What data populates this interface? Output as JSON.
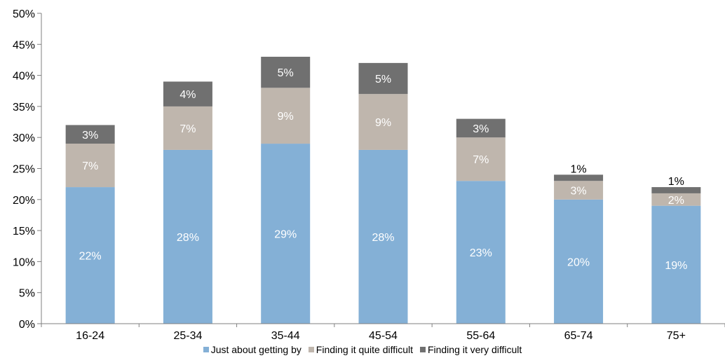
{
  "chart_data": {
    "type": "bar",
    "stacked": true,
    "categories": [
      "16-24",
      "25-34",
      "35-44",
      "45-54",
      "55-64",
      "65-74",
      "75+"
    ],
    "series": [
      {
        "name": "Just about getting by",
        "color": "#84b0d6",
        "label_color": "#ffffff",
        "values": [
          22,
          28,
          29,
          28,
          23,
          20,
          19
        ],
        "labels": [
          "22%",
          "28%",
          "29%",
          "28%",
          "23%",
          "20%",
          "19%"
        ]
      },
      {
        "name": "Finding it quite difficult",
        "color": "#bfb6ad",
        "label_color": "#ffffff",
        "values": [
          7,
          7,
          9,
          9,
          7,
          3,
          2
        ],
        "labels": [
          "7%",
          "7%",
          "9%",
          "9%",
          "7%",
          "3%",
          "2%"
        ]
      },
      {
        "name": "Finding it very difficult",
        "color": "#707070",
        "label_color": "#ffffff",
        "label_color_outside": "#000000",
        "values": [
          3,
          4,
          5,
          5,
          3,
          1,
          1
        ],
        "labels": [
          "3%",
          "4%",
          "5%",
          "5%",
          "3%",
          "1%",
          "1%"
        ]
      }
    ],
    "yticks": [
      "0%",
      "5%",
      "10%",
      "15%",
      "20%",
      "25%",
      "30%",
      "35%",
      "40%",
      "45%",
      "50%"
    ],
    "ylim": [
      0,
      50
    ],
    "ytick_step": 5,
    "grid": false,
    "legend_position": "bottom"
  }
}
